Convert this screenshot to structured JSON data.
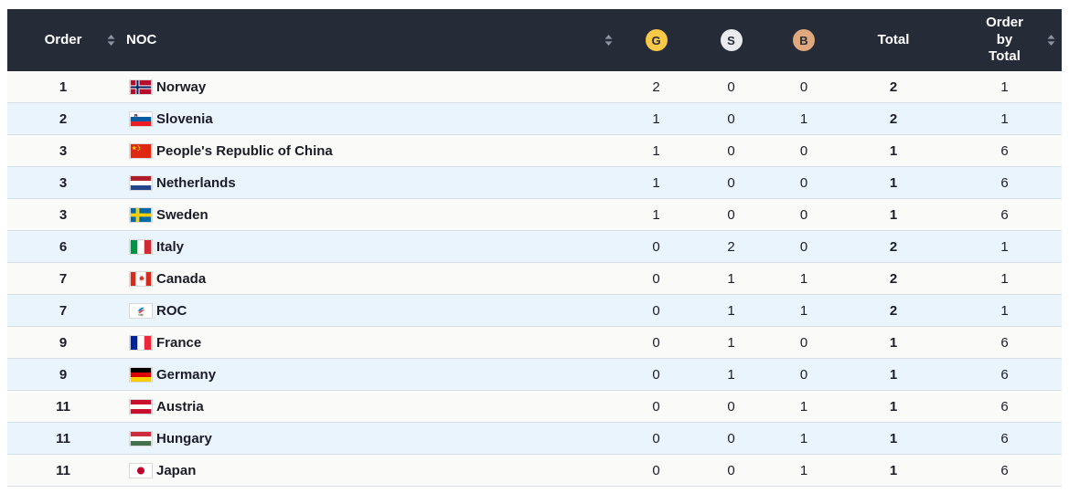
{
  "table": {
    "columns": [
      {
        "label": "Order",
        "sortable": true
      },
      {
        "label": "NOC",
        "sortable": true
      },
      {
        "label": "G",
        "medal": "gold"
      },
      {
        "label": "S",
        "medal": "silver"
      },
      {
        "label": "B",
        "medal": "bronze"
      },
      {
        "label": "Total",
        "sortable": false
      },
      {
        "label": "Order by Total",
        "sortable": true
      }
    ],
    "rows": [
      {
        "order": "1",
        "noc": "Norway",
        "flag_icon": "norway-flag-icon",
        "gold": "2",
        "silver": "0",
        "bronze": "0",
        "total": "2",
        "order_by_total": "1"
      },
      {
        "order": "2",
        "noc": "Slovenia",
        "flag_icon": "slovenia-flag-icon",
        "gold": "1",
        "silver": "0",
        "bronze": "1",
        "total": "2",
        "order_by_total": "1"
      },
      {
        "order": "3",
        "noc": "People's Republic of China",
        "flag_icon": "china-flag-icon",
        "gold": "1",
        "silver": "0",
        "bronze": "0",
        "total": "1",
        "order_by_total": "6"
      },
      {
        "order": "3",
        "noc": "Netherlands",
        "flag_icon": "netherlands-flag-icon",
        "gold": "1",
        "silver": "0",
        "bronze": "0",
        "total": "1",
        "order_by_total": "6"
      },
      {
        "order": "3",
        "noc": "Sweden",
        "flag_icon": "sweden-flag-icon",
        "gold": "1",
        "silver": "0",
        "bronze": "0",
        "total": "1",
        "order_by_total": "6"
      },
      {
        "order": "6",
        "noc": "Italy",
        "flag_icon": "italy-flag-icon",
        "gold": "0",
        "silver": "2",
        "bronze": "0",
        "total": "2",
        "order_by_total": "1"
      },
      {
        "order": "7",
        "noc": "Canada",
        "flag_icon": "canada-flag-icon",
        "gold": "0",
        "silver": "1",
        "bronze": "1",
        "total": "2",
        "order_by_total": "1"
      },
      {
        "order": "7",
        "noc": "ROC",
        "flag_icon": "roc-flag-icon",
        "gold": "0",
        "silver": "1",
        "bronze": "1",
        "total": "2",
        "order_by_total": "1"
      },
      {
        "order": "9",
        "noc": "France",
        "flag_icon": "france-flag-icon",
        "gold": "0",
        "silver": "1",
        "bronze": "0",
        "total": "1",
        "order_by_total": "6"
      },
      {
        "order": "9",
        "noc": "Germany",
        "flag_icon": "germany-flag-icon",
        "gold": "0",
        "silver": "1",
        "bronze": "0",
        "total": "1",
        "order_by_total": "6"
      },
      {
        "order": "11",
        "noc": "Austria",
        "flag_icon": "austria-flag-icon",
        "gold": "0",
        "silver": "0",
        "bronze": "1",
        "total": "1",
        "order_by_total": "6"
      },
      {
        "order": "11",
        "noc": "Hungary",
        "flag_icon": "hungary-flag-icon",
        "gold": "0",
        "silver": "0",
        "bronze": "1",
        "total": "1",
        "order_by_total": "6"
      },
      {
        "order": "11",
        "noc": "Japan",
        "flag_icon": "japan-flag-icon",
        "gold": "0",
        "silver": "0",
        "bronze": "1",
        "total": "1",
        "order_by_total": "6"
      }
    ]
  },
  "colors": {
    "header_bg": "#262b38",
    "row_bg": "#fafaf8",
    "row_alt_bg": "#eaf4fc",
    "gold": "#f9c846",
    "silver": "#e9ebee",
    "bronze": "#dfa87d",
    "sort_icon": "#8d93a0"
  }
}
